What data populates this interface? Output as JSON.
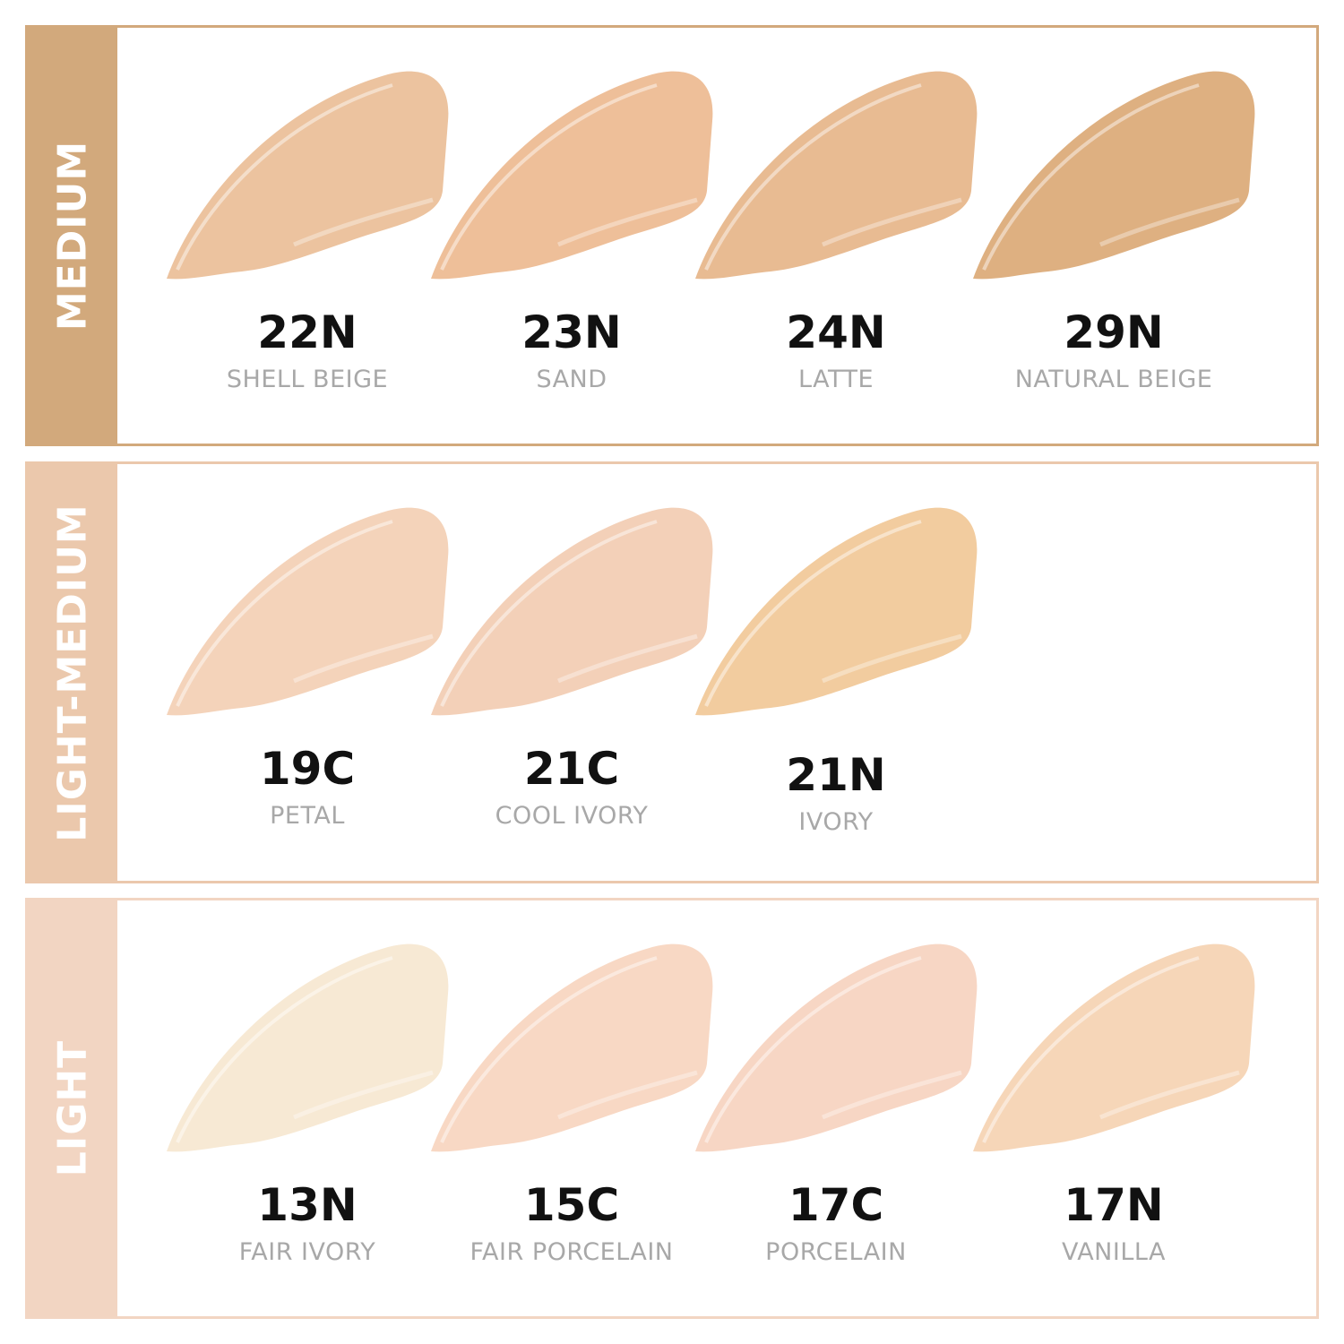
{
  "groups": [
    {
      "label": "MEDIUM",
      "color": "#d2a97c",
      "shades": [
        {
          "code": "22N",
          "name": "SHELL BEIGE",
          "color": "#ecc39f"
        },
        {
          "code": "23N",
          "name": "SAND",
          "color": "#eebf99"
        },
        {
          "code": "24N",
          "name": "LATTE",
          "color": "#e8bb92"
        },
        {
          "code": "29N",
          "name": "NATURAL BEIGE",
          "color": "#deb081"
        }
      ]
    },
    {
      "label": "LIGHT-MEDIUM",
      "color": "#ebc8ac",
      "shades": [
        {
          "code": "19C",
          "name": "PETAL",
          "color": "#f4d3ba"
        },
        {
          "code": "21C",
          "name": "COOL IVORY",
          "color": "#f3d0b8"
        },
        {
          "code": "21N",
          "name": "IVORY",
          "color": "#f2cc9f"
        }
      ]
    },
    {
      "label": "LIGHT",
      "color": "#f2d5c2",
      "shades": [
        {
          "code": "13N",
          "name": "FAIR IVORY",
          "color": "#f7e9d4"
        },
        {
          "code": "15C",
          "name": "FAIR PORCELAIN",
          "color": "#f8d8c4"
        },
        {
          "code": "17C",
          "name": "PORCELAIN",
          "color": "#f7d6c4"
        },
        {
          "code": "17N",
          "name": "VANILLA",
          "color": "#f6d6b8"
        }
      ]
    }
  ]
}
